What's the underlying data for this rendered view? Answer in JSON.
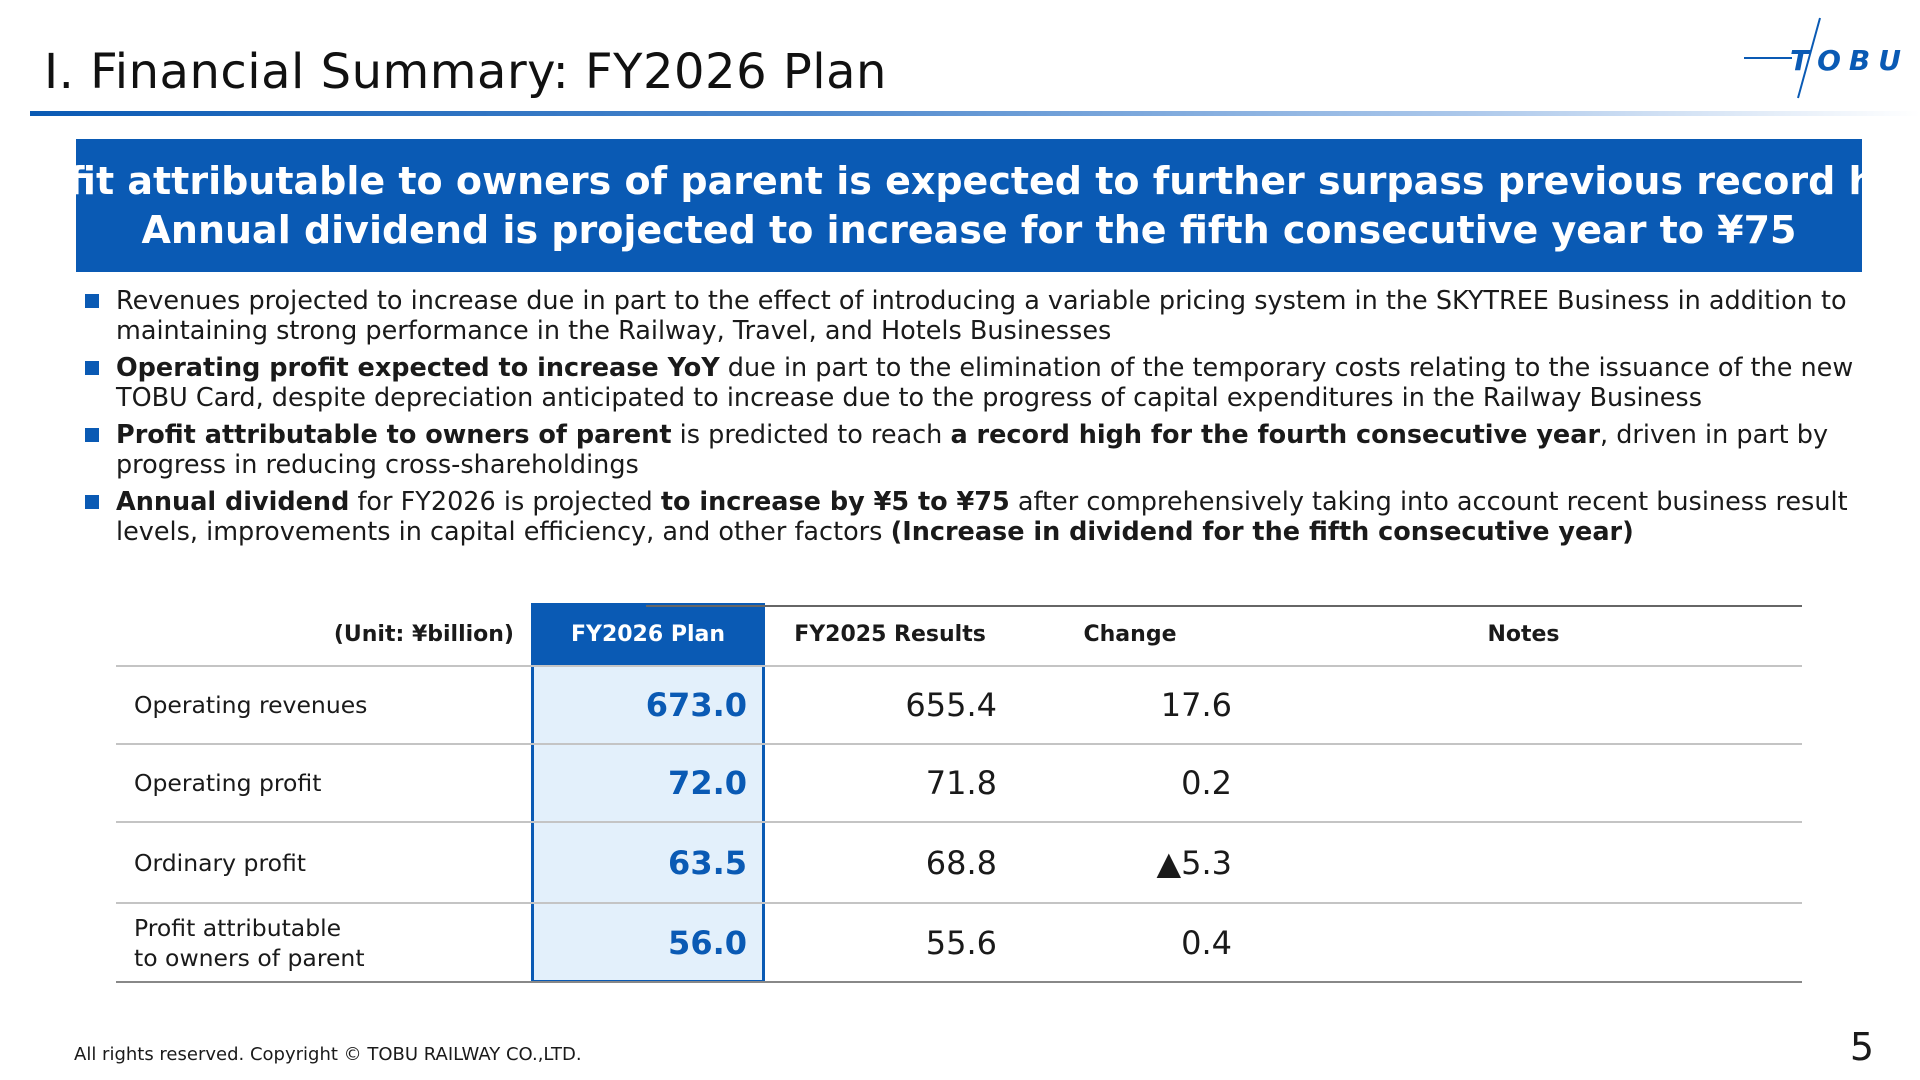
{
  "header": {
    "title": "I. Financial Summary: FY2026 Plan"
  },
  "logo": {
    "text": "TOBU"
  },
  "banner": {
    "line1": "Profit attributable to owners of parent is expected to further surpass previous record high",
    "line2": "Annual dividend is projected to increase for the fifth consecutive year to ¥75"
  },
  "bullets": [
    {
      "segments": [
        {
          "text": "Revenues projected to increase due in part to the effect of introducing a variable pricing system in the SKYTREE Business in addition to maintaining strong performance in the Railway, Travel, and Hotels Businesses",
          "bold": false
        }
      ]
    },
    {
      "segments": [
        {
          "text": "Operating profit expected to increase YoY",
          "bold": true
        },
        {
          "text": " due in part to the elimination of the temporary costs relating to the issuance of the new TOBU Card, despite depreciation anticipated to increase due to the progress of capital expenditures in the Railway Business",
          "bold": false
        }
      ]
    },
    {
      "segments": [
        {
          "text": "Profit attributable to owners of parent",
          "bold": true
        },
        {
          "text": " is predicted to reach ",
          "bold": false
        },
        {
          "text": "a record high for the fourth consecutive year",
          "bold": true
        },
        {
          "text": ", driven in part by progress in reducing cross-shareholdings",
          "bold": false
        }
      ]
    },
    {
      "segments": [
        {
          "text": "Annual dividend",
          "bold": true
        },
        {
          "text": " for FY2026 is projected ",
          "bold": false
        },
        {
          "text": "to increase by ¥5 to ¥75",
          "bold": true
        },
        {
          "text": " after comprehensively taking into account recent business result levels, improvements in capital efficiency, and other factors ",
          "bold": false
        },
        {
          "text": "(Increase in dividend for the fifth consecutive year)",
          "bold": true
        }
      ]
    }
  ],
  "table": {
    "unit": "(Unit: ¥billion)",
    "columns": [
      "FY2026 Plan",
      "FY2025 Results",
      "Change",
      "Notes"
    ],
    "rows": [
      {
        "label": "Operating revenues",
        "plan": "673.0",
        "results": "655.4",
        "change": "17.6",
        "notes": ""
      },
      {
        "label": "Operating profit",
        "plan": "72.0",
        "results": "71.8",
        "change": "0.2",
        "notes": ""
      },
      {
        "label": "Ordinary profit",
        "plan": "63.5",
        "results": "68.8",
        "change": "▲5.3",
        "notes": ""
      },
      {
        "label": "Profit attributable\nto owners of parent",
        "plan": "56.0",
        "results": "55.6",
        "change": "0.4",
        "notes": ""
      }
    ]
  },
  "footer": {
    "copyright": "All rights reserved. Copyright © TOBU RAILWAY CO.,LTD.",
    "page_number": "5"
  },
  "colors": {
    "brand_blue": "#0a5ab4",
    "plan_column_fill": "#e3f0fb"
  }
}
